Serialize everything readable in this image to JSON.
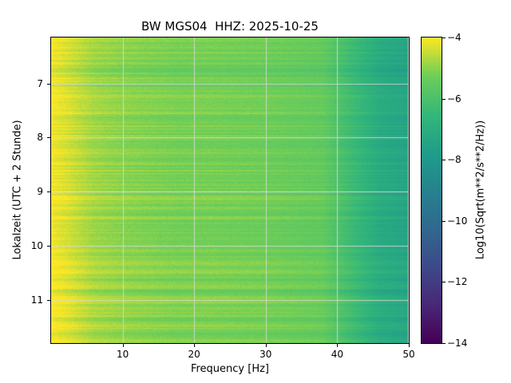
{
  "title": "BW MGS04  HHZ: 2025-10-25",
  "axes": {
    "xlabel": "Frequency [Hz]",
    "ylabel": "Lokalzeit (UTC + 2 Stunde)",
    "xtick_labels": [
      "10",
      "20",
      "30",
      "40",
      "50"
    ],
    "ytick_labels": [
      "7",
      "8",
      "9",
      "10",
      "11"
    ]
  },
  "colorbar": {
    "label": "Log10(Sqrt(m**2/s**2/Hz))",
    "tick_labels": [
      "−4",
      "−6",
      "−8",
      "−10",
      "−12",
      "−14"
    ],
    "colormap": "viridis"
  },
  "chart_data": {
    "type": "heatmap",
    "title": "BW MGS04  HHZ: 2025-10-25",
    "xlabel": "Frequency [Hz]",
    "ylabel": "Lokalzeit (UTC + 2 Stunde)",
    "colorbar_label": "Log10(Sqrt(m**2/s**2/Hz))",
    "colormap": "viridis",
    "vmin": -14,
    "vmax": -4,
    "xlim": [
      0,
      50
    ],
    "ylim": [
      6.15,
      11.8
    ],
    "y_axis_inverted": true,
    "grid": true,
    "xticks": [
      10,
      20,
      30,
      40,
      50
    ],
    "yticks": [
      7,
      8,
      9,
      10,
      11
    ],
    "colorbar_ticks": [
      -4,
      -6,
      -8,
      -10,
      -12,
      -14
    ],
    "x_frequency_hz": [
      2,
      6,
      10,
      14,
      18,
      22,
      26,
      30,
      34,
      38,
      42,
      46,
      50
    ],
    "y_time_local": [
      6.25,
      6.75,
      7.25,
      7.75,
      8.25,
      8.75,
      9.25,
      9.75,
      10.25,
      10.75,
      11.25,
      11.75
    ],
    "values_log10": [
      [
        -4.25,
        -4.75,
        -4.95,
        -5.05,
        -5.15,
        -5.15,
        -5.2,
        -5.25,
        -5.35,
        -5.45,
        -6.25,
        -7.05,
        -7.35
      ],
      [
        -4.35,
        -4.85,
        -5.05,
        -5.15,
        -5.25,
        -5.25,
        -5.3,
        -5.35,
        -5.45,
        -5.55,
        -6.35,
        -7.15,
        -7.45
      ],
      [
        -4.2,
        -4.7,
        -4.9,
        -5.0,
        -5.1,
        -5.1,
        -5.15,
        -5.2,
        -5.3,
        -5.4,
        -6.2,
        -7.0,
        -7.3
      ],
      [
        -4.3,
        -4.8,
        -5.0,
        -5.1,
        -5.2,
        -5.2,
        -5.25,
        -5.3,
        -5.4,
        -5.5,
        -6.3,
        -7.1,
        -7.4
      ],
      [
        -4.4,
        -4.9,
        -5.1,
        -5.2,
        -5.3,
        -5.3,
        -5.35,
        -5.4,
        -5.5,
        -5.6,
        -6.4,
        -7.2,
        -7.5
      ],
      [
        -4.3,
        -4.8,
        -5.0,
        -5.1,
        -5.2,
        -5.2,
        -5.25,
        -5.3,
        -5.4,
        -5.5,
        -6.3,
        -7.1,
        -7.4
      ],
      [
        -4.2,
        -4.7,
        -4.9,
        -5.0,
        -5.1,
        -5.1,
        -5.15,
        -5.2,
        -5.3,
        -5.4,
        -6.2,
        -7.0,
        -7.3
      ],
      [
        -4.35,
        -4.85,
        -5.05,
        -5.15,
        -5.25,
        -5.25,
        -5.3,
        -5.35,
        -5.45,
        -5.55,
        -6.35,
        -7.15,
        -7.45
      ],
      [
        -4.15,
        -4.65,
        -4.85,
        -4.95,
        -5.05,
        -5.05,
        -5.1,
        -5.15,
        -5.25,
        -5.35,
        -6.15,
        -6.95,
        -7.25
      ],
      [
        -4.3,
        -4.8,
        -5.0,
        -5.1,
        -5.2,
        -5.2,
        -5.25,
        -5.3,
        -5.4,
        -5.5,
        -6.3,
        -7.1,
        -7.4
      ],
      [
        -4.25,
        -4.75,
        -4.95,
        -5.05,
        -5.15,
        -5.15,
        -5.2,
        -5.25,
        -5.35,
        -5.45,
        -6.25,
        -7.05,
        -7.35
      ],
      [
        -4.2,
        -4.7,
        -4.9,
        -5.0,
        -5.1,
        -5.1,
        -5.15,
        -5.2,
        -5.3,
        -5.4,
        -6.2,
        -7.0,
        -7.3
      ]
    ]
  }
}
